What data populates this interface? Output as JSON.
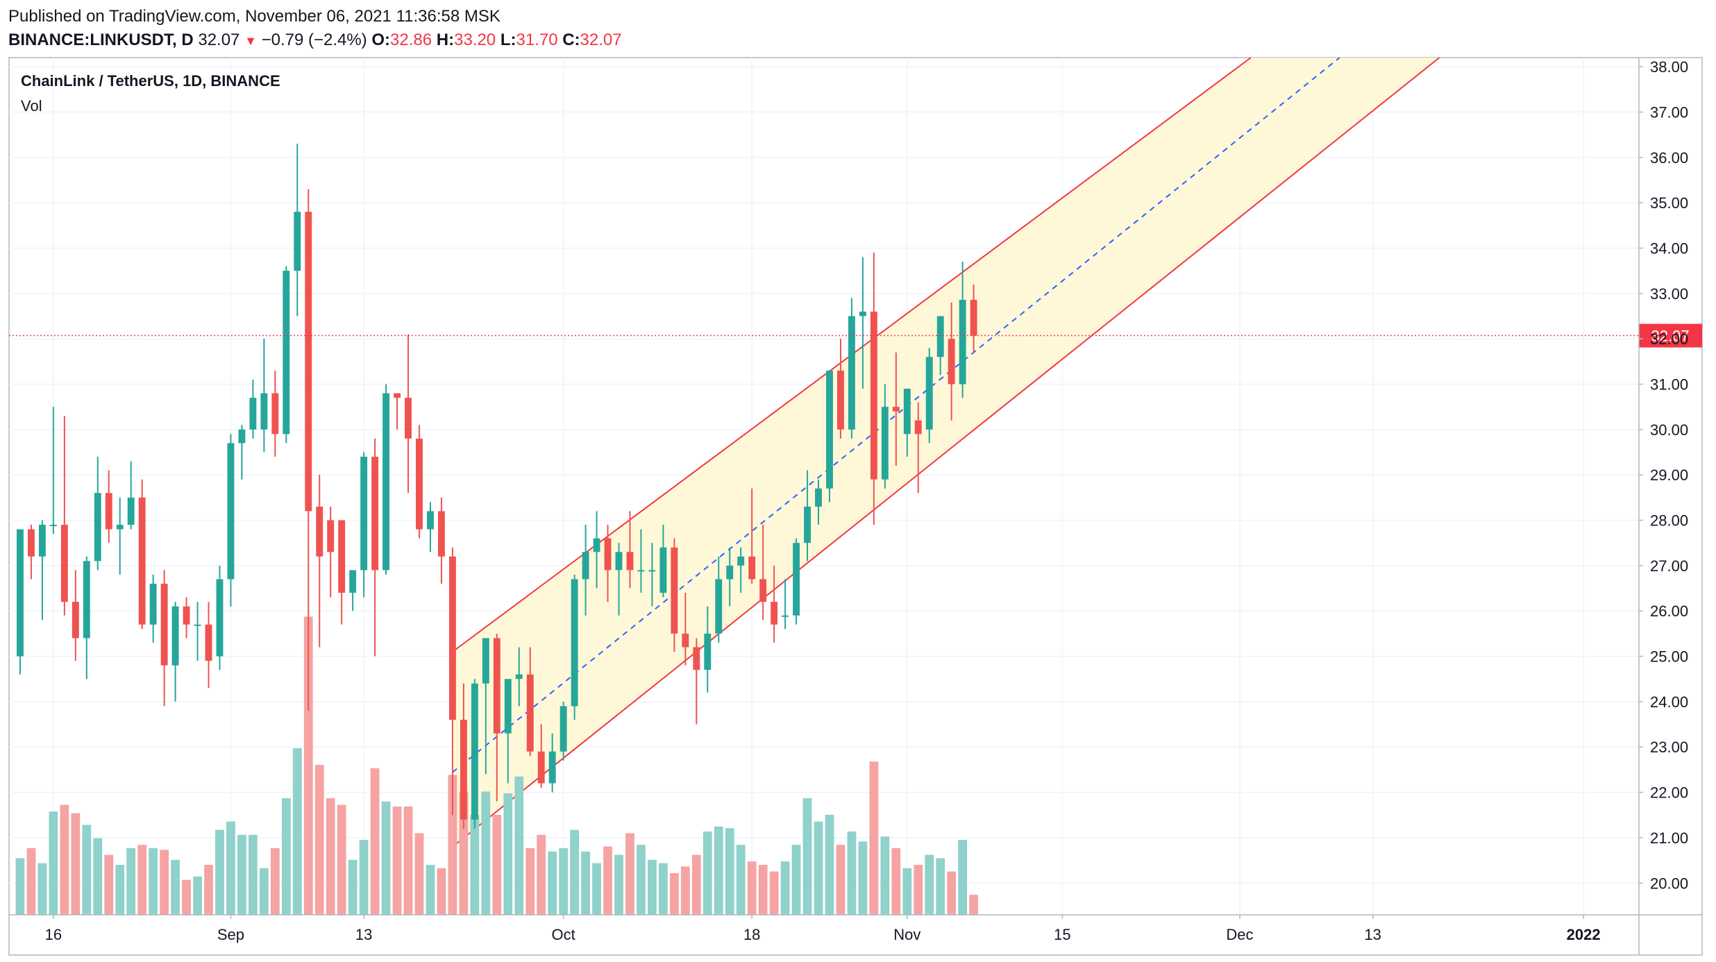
{
  "header": {
    "published": "Published on TradingView.com, November 06, 2021 11:36:58 MSK",
    "symbol": "BINANCE:LINKUSDT, D",
    "last": "32.07",
    "change_arrow": "▼",
    "change": "−0.79 (−2.4%)",
    "o_label": "O:",
    "o_value": "32.86",
    "h_label": "H:",
    "h_value": "33.20",
    "l_label": "L:",
    "l_value": "31.70",
    "c_label": "C:",
    "c_value": "32.07"
  },
  "legend": {
    "title": "ChainLink / TetherUS, 1D, BINANCE",
    "volume_label": "Vol"
  },
  "colors": {
    "up": "#26a69a",
    "down": "#ef5350",
    "vol_up": "#8fd1cb",
    "vol_down": "#f5a3a3",
    "channel_line": "#f23645",
    "channel_fill": "#fff7d1",
    "median_line": "#2962ff",
    "grid": "#f0f3fa",
    "axis_text": "#131722",
    "price_label_bg": "#f23645"
  },
  "chart_data": {
    "type": "candlestick",
    "interval": "1D",
    "start_date": "2021-08-13",
    "ylim": [
      19.3,
      38.2
    ],
    "y_ticks": [
      "20.00",
      "21.00",
      "22.00",
      "23.00",
      "24.00",
      "25.00",
      "26.00",
      "27.00",
      "28.00",
      "29.00",
      "30.00",
      "31.00",
      "32.00",
      "33.00",
      "34.00",
      "35.00",
      "36.00",
      "37.00",
      "38.00"
    ],
    "x_ticks": [
      {
        "date": "2021-08-16",
        "label": "16"
      },
      {
        "date": "2021-09-01",
        "label": "Sep"
      },
      {
        "date": "2021-09-13",
        "label": "13"
      },
      {
        "date": "2021-10-01",
        "label": "Oct"
      },
      {
        "date": "2021-10-18",
        "label": "18"
      },
      {
        "date": "2021-11-01",
        "label": "Nov"
      },
      {
        "date": "2021-11-15",
        "label": "15"
      },
      {
        "date": "2021-12-01",
        "label": "Dec"
      },
      {
        "date": "2021-12-13",
        "label": "13"
      },
      {
        "date": "2022-01-01",
        "label": "2022"
      }
    ],
    "xlim": [
      "2021-08-12",
      "2022-01-06"
    ],
    "last_price": "32.07",
    "candles": [
      {
        "date": "2021-08-13",
        "o": 25.0,
        "h": 27.8,
        "l": 24.6,
        "c": 27.8
      },
      {
        "date": "2021-08-14",
        "o": 27.8,
        "h": 27.9,
        "l": 26.7,
        "c": 27.2
      },
      {
        "date": "2021-08-15",
        "o": 27.2,
        "h": 28.0,
        "l": 25.8,
        "c": 27.9
      },
      {
        "date": "2021-08-16",
        "o": 27.9,
        "h": 30.5,
        "l": 27.7,
        "c": 27.9
      },
      {
        "date": "2021-08-17",
        "o": 27.9,
        "h": 30.3,
        "l": 25.9,
        "c": 26.2
      },
      {
        "date": "2021-08-18",
        "o": 26.2,
        "h": 26.9,
        "l": 24.9,
        "c": 25.4
      },
      {
        "date": "2021-08-19",
        "o": 25.4,
        "h": 27.2,
        "l": 24.5,
        "c": 27.1
      },
      {
        "date": "2021-08-20",
        "o": 27.1,
        "h": 29.4,
        "l": 26.9,
        "c": 28.6
      },
      {
        "date": "2021-08-21",
        "o": 28.6,
        "h": 29.1,
        "l": 27.5,
        "c": 27.8
      },
      {
        "date": "2021-08-22",
        "o": 27.8,
        "h": 28.5,
        "l": 26.8,
        "c": 27.9
      },
      {
        "date": "2021-08-23",
        "o": 27.9,
        "h": 29.3,
        "l": 27.8,
        "c": 28.5
      },
      {
        "date": "2021-08-24",
        "o": 28.5,
        "h": 28.9,
        "l": 25.6,
        "c": 25.7
      },
      {
        "date": "2021-08-25",
        "o": 25.7,
        "h": 26.8,
        "l": 25.3,
        "c": 26.6
      },
      {
        "date": "2021-08-26",
        "o": 26.6,
        "h": 26.9,
        "l": 23.9,
        "c": 24.8
      },
      {
        "date": "2021-08-27",
        "o": 24.8,
        "h": 26.2,
        "l": 24.0,
        "c": 26.1
      },
      {
        "date": "2021-08-28",
        "o": 26.1,
        "h": 26.3,
        "l": 25.4,
        "c": 25.7
      },
      {
        "date": "2021-08-29",
        "o": 25.7,
        "h": 26.2,
        "l": 24.9,
        "c": 25.7
      },
      {
        "date": "2021-08-30",
        "o": 25.7,
        "h": 26.2,
        "l": 24.3,
        "c": 24.9
      },
      {
        "date": "2021-08-31",
        "o": 25.0,
        "h": 27.0,
        "l": 24.7,
        "c": 26.7
      },
      {
        "date": "2021-09-01",
        "o": 26.7,
        "h": 29.9,
        "l": 26.1,
        "c": 29.7
      },
      {
        "date": "2021-09-02",
        "o": 29.7,
        "h": 30.1,
        "l": 28.9,
        "c": 30.0
      },
      {
        "date": "2021-09-03",
        "o": 30.0,
        "h": 31.1,
        "l": 29.8,
        "c": 30.7
      },
      {
        "date": "2021-09-04",
        "o": 30.0,
        "h": 32.0,
        "l": 29.5,
        "c": 30.8
      },
      {
        "date": "2021-09-05",
        "o": 30.8,
        "h": 31.3,
        "l": 29.4,
        "c": 29.9
      },
      {
        "date": "2021-09-06",
        "o": 29.9,
        "h": 33.6,
        "l": 29.7,
        "c": 33.5
      },
      {
        "date": "2021-09-07",
        "o": 33.5,
        "h": 36.3,
        "l": 32.5,
        "c": 34.8
      },
      {
        "date": "2021-09-08",
        "o": 34.8,
        "h": 35.3,
        "l": 23.8,
        "c": 28.2
      },
      {
        "date": "2021-09-09",
        "o": 28.3,
        "h": 29.0,
        "l": 25.2,
        "c": 27.2
      },
      {
        "date": "2021-09-10",
        "o": 28.0,
        "h": 28.3,
        "l": 26.3,
        "c": 27.3
      },
      {
        "date": "2021-09-11",
        "o": 28.0,
        "h": 28.0,
        "l": 25.7,
        "c": 26.4
      },
      {
        "date": "2021-09-12",
        "o": 26.4,
        "h": 26.8,
        "l": 26.0,
        "c": 26.9
      },
      {
        "date": "2021-09-13",
        "o": 26.9,
        "h": 29.5,
        "l": 26.3,
        "c": 29.4
      },
      {
        "date": "2021-09-14",
        "o": 29.4,
        "h": 29.8,
        "l": 25.0,
        "c": 26.9
      },
      {
        "date": "2021-09-15",
        "o": 26.9,
        "h": 31.0,
        "l": 26.8,
        "c": 30.8
      },
      {
        "date": "2021-09-16",
        "o": 30.8,
        "h": 30.8,
        "l": 30.0,
        "c": 30.7
      },
      {
        "date": "2021-09-17",
        "o": 30.7,
        "h": 32.1,
        "l": 28.6,
        "c": 29.8
      },
      {
        "date": "2021-09-18",
        "o": 29.8,
        "h": 30.1,
        "l": 27.6,
        "c": 27.8
      },
      {
        "date": "2021-09-19",
        "o": 27.8,
        "h": 28.4,
        "l": 27.3,
        "c": 28.2
      },
      {
        "date": "2021-09-20",
        "o": 28.2,
        "h": 28.5,
        "l": 26.6,
        "c": 27.2
      },
      {
        "date": "2021-09-21",
        "o": 27.2,
        "h": 27.4,
        "l": 21.5,
        "c": 23.6
      },
      {
        "date": "2021-09-22",
        "o": 23.6,
        "h": 24.4,
        "l": 21.2,
        "c": 21.4
      },
      {
        "date": "2021-09-23",
        "o": 21.4,
        "h": 24.5,
        "l": 21.2,
        "c": 24.4
      },
      {
        "date": "2021-09-24",
        "o": 24.4,
        "h": 25.4,
        "l": 22.4,
        "c": 25.4
      },
      {
        "date": "2021-09-25",
        "o": 25.4,
        "h": 25.5,
        "l": 21.8,
        "c": 23.3
      },
      {
        "date": "2021-09-26",
        "o": 23.3,
        "h": 24.4,
        "l": 22.2,
        "c": 24.5
      },
      {
        "date": "2021-09-27",
        "o": 24.5,
        "h": 25.2,
        "l": 23.9,
        "c": 24.6
      },
      {
        "date": "2021-09-28",
        "o": 24.6,
        "h": 25.2,
        "l": 22.8,
        "c": 22.9
      },
      {
        "date": "2021-09-29",
        "o": 22.9,
        "h": 23.5,
        "l": 22.1,
        "c": 22.2
      },
      {
        "date": "2021-09-30",
        "o": 22.2,
        "h": 23.3,
        "l": 22.0,
        "c": 22.9
      },
      {
        "date": "2021-10-01",
        "o": 22.9,
        "h": 24.0,
        "l": 22.7,
        "c": 23.9
      },
      {
        "date": "2021-10-02",
        "o": 23.9,
        "h": 26.8,
        "l": 23.6,
        "c": 26.7
      },
      {
        "date": "2021-10-03",
        "o": 26.7,
        "h": 27.9,
        "l": 25.9,
        "c": 27.3
      },
      {
        "date": "2021-10-04",
        "o": 27.3,
        "h": 28.2,
        "l": 26.5,
        "c": 27.6
      },
      {
        "date": "2021-10-05",
        "o": 27.6,
        "h": 27.9,
        "l": 26.2,
        "c": 26.9
      },
      {
        "date": "2021-10-06",
        "o": 26.9,
        "h": 27.5,
        "l": 25.9,
        "c": 27.3
      },
      {
        "date": "2021-10-07",
        "o": 27.3,
        "h": 28.2,
        "l": 26.5,
        "c": 26.9
      },
      {
        "date": "2021-10-08",
        "o": 26.9,
        "h": 27.8,
        "l": 26.4,
        "c": 26.9
      },
      {
        "date": "2021-10-09",
        "o": 26.9,
        "h": 27.5,
        "l": 26.1,
        "c": 26.9
      },
      {
        "date": "2021-10-10",
        "o": 26.4,
        "h": 27.9,
        "l": 26.3,
        "c": 27.4
      },
      {
        "date": "2021-10-11",
        "o": 27.4,
        "h": 27.6,
        "l": 25.1,
        "c": 25.5
      },
      {
        "date": "2021-10-12",
        "o": 25.5,
        "h": 26.4,
        "l": 24.8,
        "c": 25.2
      },
      {
        "date": "2021-10-13",
        "o": 25.2,
        "h": 25.4,
        "l": 23.5,
        "c": 24.7
      },
      {
        "date": "2021-10-14",
        "o": 24.7,
        "h": 26.1,
        "l": 24.2,
        "c": 25.5
      },
      {
        "date": "2021-10-15",
        "o": 25.5,
        "h": 27.2,
        "l": 25.3,
        "c": 26.7
      },
      {
        "date": "2021-10-16",
        "o": 26.7,
        "h": 27.4,
        "l": 26.1,
        "c": 27.0
      },
      {
        "date": "2021-10-17",
        "o": 27.0,
        "h": 27.4,
        "l": 26.4,
        "c": 27.2
      },
      {
        "date": "2021-10-18",
        "o": 27.2,
        "h": 28.7,
        "l": 26.6,
        "c": 26.7
      },
      {
        "date": "2021-10-19",
        "o": 26.7,
        "h": 27.9,
        "l": 25.8,
        "c": 26.2
      },
      {
        "date": "2021-10-20",
        "o": 26.2,
        "h": 27.0,
        "l": 25.3,
        "c": 25.7
      },
      {
        "date": "2021-10-21",
        "o": 25.9,
        "h": 26.7,
        "l": 25.6,
        "c": 25.9
      },
      {
        "date": "2021-10-22",
        "o": 25.9,
        "h": 27.6,
        "l": 25.7,
        "c": 27.5
      },
      {
        "date": "2021-10-23",
        "o": 27.5,
        "h": 29.1,
        "l": 27.1,
        "c": 28.3
      },
      {
        "date": "2021-10-24",
        "o": 28.3,
        "h": 28.9,
        "l": 27.9,
        "c": 28.7
      },
      {
        "date": "2021-10-25",
        "o": 28.7,
        "h": 31.3,
        "l": 28.4,
        "c": 31.3
      },
      {
        "date": "2021-10-26",
        "o": 31.3,
        "h": 32.0,
        "l": 29.8,
        "c": 30.0
      },
      {
        "date": "2021-10-27",
        "o": 30.0,
        "h": 32.9,
        "l": 29.8,
        "c": 32.5
      },
      {
        "date": "2021-10-28",
        "o": 32.5,
        "h": 33.8,
        "l": 30.9,
        "c": 32.6
      },
      {
        "date": "2021-10-29",
        "o": 32.6,
        "h": 33.9,
        "l": 27.9,
        "c": 28.9
      },
      {
        "date": "2021-10-30",
        "o": 28.9,
        "h": 31.0,
        "l": 28.7,
        "c": 30.5
      },
      {
        "date": "2021-10-31",
        "o": 30.5,
        "h": 31.7,
        "l": 29.2,
        "c": 30.4
      },
      {
        "date": "2021-11-01",
        "o": 29.9,
        "h": 30.9,
        "l": 29.4,
        "c": 30.9
      },
      {
        "date": "2021-11-02",
        "o": 30.2,
        "h": 30.6,
        "l": 28.6,
        "c": 29.9
      },
      {
        "date": "2021-11-03",
        "o": 30.0,
        "h": 31.8,
        "l": 29.7,
        "c": 31.6
      },
      {
        "date": "2021-11-04",
        "o": 31.6,
        "h": 32.5,
        "l": 31.2,
        "c": 32.5
      },
      {
        "date": "2021-11-05",
        "o": 32.0,
        "h": 32.8,
        "l": 30.2,
        "c": 31.0
      },
      {
        "date": "2021-11-06",
        "o": 31.0,
        "h": 33.7,
        "l": 30.7,
        "c": 32.86
      },
      {
        "date": "2021-11-07",
        "o": 32.86,
        "h": 33.2,
        "l": 31.7,
        "c": 32.07
      }
    ],
    "volume_scale_max": 100,
    "volumes": [
      {
        "date": "2021-08-13",
        "v": 34
      },
      {
        "date": "2021-08-14",
        "v": 40
      },
      {
        "date": "2021-08-15",
        "v": 31
      },
      {
        "date": "2021-08-16",
        "v": 62
      },
      {
        "date": "2021-08-17",
        "v": 66
      },
      {
        "date": "2021-08-18",
        "v": 61
      },
      {
        "date": "2021-08-19",
        "v": 54
      },
      {
        "date": "2021-08-20",
        "v": 46
      },
      {
        "date": "2021-08-21",
        "v": 36
      },
      {
        "date": "2021-08-22",
        "v": 30
      },
      {
        "date": "2021-08-23",
        "v": 40
      },
      {
        "date": "2021-08-24",
        "v": 42
      },
      {
        "date": "2021-08-25",
        "v": 40
      },
      {
        "date": "2021-08-26",
        "v": 39
      },
      {
        "date": "2021-08-27",
        "v": 33
      },
      {
        "date": "2021-08-28",
        "v": 21
      },
      {
        "date": "2021-08-29",
        "v": 23
      },
      {
        "date": "2021-08-30",
        "v": 30
      },
      {
        "date": "2021-08-31",
        "v": 51
      },
      {
        "date": "2021-09-01",
        "v": 56
      },
      {
        "date": "2021-09-02",
        "v": 48
      },
      {
        "date": "2021-09-03",
        "v": 48
      },
      {
        "date": "2021-09-04",
        "v": 28
      },
      {
        "date": "2021-09-05",
        "v": 40
      },
      {
        "date": "2021-09-06",
        "v": 70
      },
      {
        "date": "2021-09-07",
        "v": 100
      },
      {
        "date": "2021-09-08",
        "v": 179
      },
      {
        "date": "2021-09-09",
        "v": 90
      },
      {
        "date": "2021-09-10",
        "v": 70
      },
      {
        "date": "2021-09-11",
        "v": 66
      },
      {
        "date": "2021-09-12",
        "v": 33
      },
      {
        "date": "2021-09-13",
        "v": 45
      },
      {
        "date": "2021-09-14",
        "v": 88
      },
      {
        "date": "2021-09-15",
        "v": 68
      },
      {
        "date": "2021-09-16",
        "v": 65
      },
      {
        "date": "2021-09-17",
        "v": 65
      },
      {
        "date": "2021-09-18",
        "v": 49
      },
      {
        "date": "2021-09-19",
        "v": 30
      },
      {
        "date": "2021-09-20",
        "v": 28
      },
      {
        "date": "2021-09-21",
        "v": 84
      },
      {
        "date": "2021-09-22",
        "v": 74
      },
      {
        "date": "2021-09-23",
        "v": 60
      },
      {
        "date": "2021-09-24",
        "v": 74
      },
      {
        "date": "2021-09-25",
        "v": 60
      },
      {
        "date": "2021-09-26",
        "v": 73
      },
      {
        "date": "2021-09-27",
        "v": 83
      },
      {
        "date": "2021-09-28",
        "v": 40
      },
      {
        "date": "2021-09-29",
        "v": 48
      },
      {
        "date": "2021-09-30",
        "v": 38
      },
      {
        "date": "2021-10-01",
        "v": 40
      },
      {
        "date": "2021-10-02",
        "v": 51
      },
      {
        "date": "2021-10-03",
        "v": 38
      },
      {
        "date": "2021-10-04",
        "v": 31
      },
      {
        "date": "2021-10-05",
        "v": 41
      },
      {
        "date": "2021-10-06",
        "v": 36
      },
      {
        "date": "2021-10-07",
        "v": 49
      },
      {
        "date": "2021-10-08",
        "v": 42
      },
      {
        "date": "2021-10-09",
        "v": 33
      },
      {
        "date": "2021-10-10",
        "v": 31
      },
      {
        "date": "2021-10-11",
        "v": 25
      },
      {
        "date": "2021-10-12",
        "v": 29
      },
      {
        "date": "2021-10-13",
        "v": 36
      },
      {
        "date": "2021-10-14",
        "v": 50
      },
      {
        "date": "2021-10-15",
        "v": 53
      },
      {
        "date": "2021-10-16",
        "v": 52
      },
      {
        "date": "2021-10-17",
        "v": 42
      },
      {
        "date": "2021-10-18",
        "v": 32
      },
      {
        "date": "2021-10-19",
        "v": 30
      },
      {
        "date": "2021-10-20",
        "v": 26
      },
      {
        "date": "2021-10-21",
        "v": 32
      },
      {
        "date": "2021-10-22",
        "v": 42
      },
      {
        "date": "2021-10-23",
        "v": 70
      },
      {
        "date": "2021-10-24",
        "v": 56
      },
      {
        "date": "2021-10-25",
        "v": 60
      },
      {
        "date": "2021-10-26",
        "v": 42
      },
      {
        "date": "2021-10-27",
        "v": 50
      },
      {
        "date": "2021-10-28",
        "v": 44
      },
      {
        "date": "2021-10-29",
        "v": 92
      },
      {
        "date": "2021-10-30",
        "v": 47
      },
      {
        "date": "2021-10-31",
        "v": 40
      },
      {
        "date": "2021-11-01",
        "v": 28
      },
      {
        "date": "2021-11-02",
        "v": 30
      },
      {
        "date": "2021-11-03",
        "v": 36
      },
      {
        "date": "2021-11-04",
        "v": 34
      },
      {
        "date": "2021-11-05",
        "v": 26
      },
      {
        "date": "2021-11-06",
        "v": 45
      },
      {
        "date": "2021-11-07",
        "v": 12
      }
    ],
    "channel": {
      "upper": [
        {
          "date": "2021-09-21",
          "price": 25.1
        },
        {
          "date": "2021-12-02",
          "price": 38.2
        }
      ],
      "lower": [
        {
          "date": "2021-09-21",
          "price": 20.8
        },
        {
          "date": "2021-12-19",
          "price": 38.2
        }
      ],
      "median": [
        {
          "date": "2021-11-07",
          "price": 31.7
        },
        {
          "date": "2021-12-10",
          "price": 38.2
        }
      ]
    }
  }
}
